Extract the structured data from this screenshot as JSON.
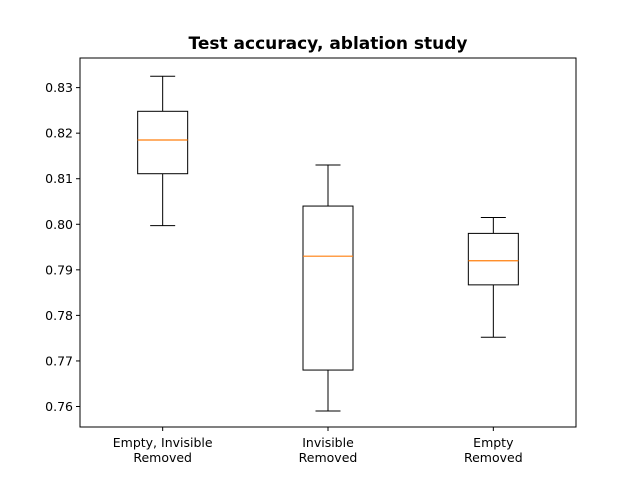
{
  "chart_data": {
    "type": "box",
    "title": "Test accuracy, ablation study",
    "xlabel": "",
    "ylabel": "",
    "ylim": [
      0.7555,
      0.8365
    ],
    "yticks": [
      "0.76",
      "0.77",
      "0.78",
      "0.79",
      "0.80",
      "0.81",
      "0.82",
      "0.83"
    ],
    "grid": false,
    "categories": [
      [
        "Empty, Invisible",
        "Removed"
      ],
      [
        "Invisible",
        "Removed"
      ],
      [
        "Empty",
        "Removed"
      ]
    ],
    "boxes": [
      {
        "whisker_low": 0.7997,
        "q1": 0.8111,
        "median": 0.8185,
        "q3": 0.8248,
        "whisker_high": 0.8325
      },
      {
        "whisker_low": 0.759,
        "q1": 0.768,
        "median": 0.793,
        "q3": 0.804,
        "whisker_high": 0.813
      },
      {
        "whisker_low": 0.7752,
        "q1": 0.7867,
        "median": 0.792,
        "q3": 0.798,
        "whisker_high": 0.8015
      }
    ],
    "colors": {
      "box": "#000000",
      "median": "#ff7f0e"
    }
  }
}
